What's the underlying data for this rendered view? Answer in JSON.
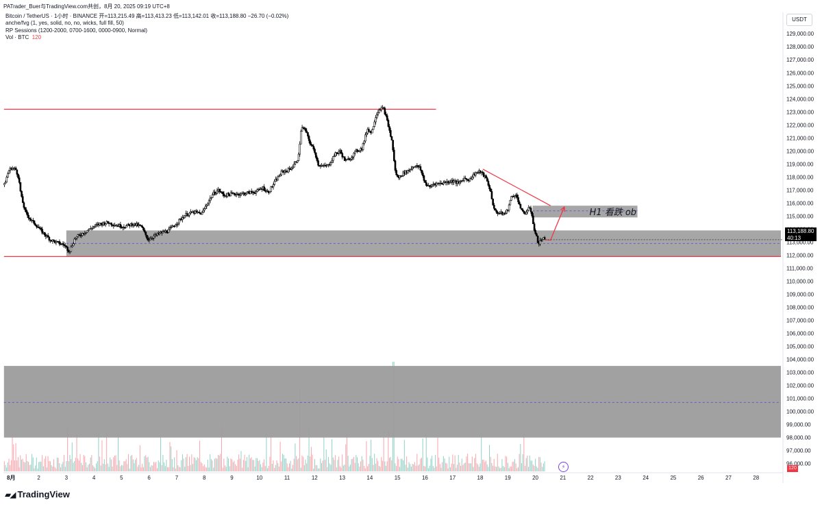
{
  "window_title": "PATrader_Buer与TradingView.com共创，8月 20, 2025 09:19 UTC+8",
  "legend": {
    "line1": "Bitcoin / TetherUS · 1小时 · BINANCE  开=113,215.49  高=113,413.23  低=113,142.01  收=113,188.80  −26.70 (−0.02%)",
    "line2": "anche/fvg (1, yes, solid, no, no, wicks, full fill, 50)",
    "line3": "RP Sessions (1200-2000, 0700-1600, 0000-0900, Normal)",
    "line4_label": "Vol · BTC",
    "line4_value": "120"
  },
  "currency_button": "USDT",
  "price_tag": {
    "price": "113,188.80",
    "countdown": "40:13"
  },
  "volume_tag": "120",
  "annotation_label": "H1 看跌 ob",
  "brand": "TradingView",
  "colors": {
    "up": "#089981",
    "down": "#f23645",
    "zone": "#9c9c9c",
    "accent": "#7b3fe4"
  },
  "chart_data": {
    "type": "candlestick",
    "ylim": [
      95300,
      129800
    ],
    "y_ticks": [
      96000,
      97000,
      98000,
      99000,
      100000,
      101000,
      102000,
      103000,
      104000,
      105000,
      106000,
      107000,
      108000,
      109000,
      110000,
      111000,
      112000,
      113000,
      114000,
      115000,
      116000,
      117000,
      118000,
      119000,
      120000,
      121000,
      122000,
      123000,
      124000,
      125000,
      126000,
      127000,
      128000,
      129000
    ],
    "x_range": [
      0.72,
      28.9
    ],
    "x_ticks": [
      {
        "x": 1,
        "label": "8月"
      },
      {
        "x": 2,
        "label": "2"
      },
      {
        "x": 3,
        "label": "3"
      },
      {
        "x": 4,
        "label": "4"
      },
      {
        "x": 5,
        "label": "5"
      },
      {
        "x": 6,
        "label": "6"
      },
      {
        "x": 7,
        "label": "7"
      },
      {
        "x": 8,
        "label": "8"
      },
      {
        "x": 9,
        "label": "9"
      },
      {
        "x": 10,
        "label": "10"
      },
      {
        "x": 11,
        "label": "11"
      },
      {
        "x": 12,
        "label": "12"
      },
      {
        "x": 13,
        "label": "13"
      },
      {
        "x": 14,
        "label": "14"
      },
      {
        "x": 15,
        "label": "15"
      },
      {
        "x": 16,
        "label": "16"
      },
      {
        "x": 17,
        "label": "17"
      },
      {
        "x": 18,
        "label": "18"
      },
      {
        "x": 19,
        "label": "19"
      },
      {
        "x": 20,
        "label": "20"
      },
      {
        "x": 21,
        "label": "21"
      },
      {
        "x": 22,
        "label": "22"
      },
      {
        "x": 23,
        "label": "23"
      },
      {
        "x": 24,
        "label": "24"
      },
      {
        "x": 25,
        "label": "25"
      },
      {
        "x": 26,
        "label": "26"
      },
      {
        "x": 27,
        "label": "27"
      },
      {
        "x": 28,
        "label": "28"
      }
    ],
    "price_path": [
      [
        0.74,
        117400
      ],
      [
        0.9,
        118500
      ],
      [
        1.0,
        118700
      ],
      [
        1.15,
        118600
      ],
      [
        1.25,
        118000
      ],
      [
        1.35,
        116500
      ],
      [
        1.5,
        115300
      ],
      [
        1.7,
        114700
      ],
      [
        1.9,
        114300
      ],
      [
        2.1,
        113800
      ],
      [
        2.4,
        113200
      ],
      [
        2.6,
        113000
      ],
      [
        2.9,
        112800
      ],
      [
        3.1,
        112300
      ],
      [
        3.3,
        113300
      ],
      [
        3.6,
        113700
      ],
      [
        3.9,
        114100
      ],
      [
        4.2,
        114400
      ],
      [
        4.5,
        114500
      ],
      [
        4.8,
        114300
      ],
      [
        5.1,
        114200
      ],
      [
        5.4,
        114400
      ],
      [
        5.7,
        114200
      ],
      [
        5.95,
        113200
      ],
      [
        6.1,
        113400
      ],
      [
        6.4,
        113700
      ],
      [
        6.7,
        113900
      ],
      [
        7.0,
        114500
      ],
      [
        7.3,
        115100
      ],
      [
        7.6,
        115300
      ],
      [
        7.9,
        115200
      ],
      [
        8.1,
        116000
      ],
      [
        8.3,
        116700
      ],
      [
        8.5,
        117000
      ],
      [
        8.7,
        116600
      ],
      [
        9.0,
        116700
      ],
      [
        9.3,
        116700
      ],
      [
        9.6,
        116800
      ],
      [
        9.9,
        116900
      ],
      [
        10.1,
        117200
      ],
      [
        10.3,
        116800
      ],
      [
        10.6,
        117800
      ],
      [
        10.8,
        118400
      ],
      [
        11.0,
        118500
      ],
      [
        11.2,
        118800
      ],
      [
        11.4,
        119500
      ],
      [
        11.5,
        121800
      ],
      [
        11.65,
        121600
      ],
      [
        11.8,
        120700
      ],
      [
        12.0,
        119900
      ],
      [
        12.1,
        119000
      ],
      [
        12.3,
        118800
      ],
      [
        12.5,
        118900
      ],
      [
        12.7,
        119700
      ],
      [
        12.9,
        120000
      ],
      [
        13.1,
        119200
      ],
      [
        13.3,
        119500
      ],
      [
        13.5,
        120000
      ],
      [
        13.7,
        120200
      ],
      [
        13.9,
        121700
      ],
      [
        14.05,
        121400
      ],
      [
        14.2,
        122700
      ],
      [
        14.35,
        123300
      ],
      [
        14.5,
        123200
      ],
      [
        14.65,
        122000
      ],
      [
        14.8,
        120600
      ],
      [
        14.9,
        118500
      ],
      [
        15.0,
        117900
      ],
      [
        15.2,
        118300
      ],
      [
        15.4,
        118500
      ],
      [
        15.6,
        118900
      ],
      [
        15.8,
        118700
      ],
      [
        16.0,
        117500
      ],
      [
        16.15,
        117200
      ],
      [
        16.3,
        117500
      ],
      [
        16.5,
        117500
      ],
      [
        16.7,
        117600
      ],
      [
        17.0,
        117700
      ],
      [
        17.2,
        117500
      ],
      [
        17.4,
        117900
      ],
      [
        17.6,
        117800
      ],
      [
        17.8,
        118300
      ],
      [
        18.0,
        118400
      ],
      [
        18.2,
        117900
      ],
      [
        18.35,
        117000
      ],
      [
        18.5,
        115400
      ],
      [
        18.7,
        115200
      ],
      [
        18.9,
        115200
      ],
      [
        19.0,
        115600
      ],
      [
        19.1,
        116400
      ],
      [
        19.25,
        116700
      ],
      [
        19.35,
        116300
      ],
      [
        19.5,
        115300
      ],
      [
        19.6,
        115200
      ],
      [
        19.75,
        115600
      ],
      [
        19.85,
        115300
      ],
      [
        19.95,
        113900
      ],
      [
        20.1,
        112900
      ],
      [
        20.25,
        113300
      ],
      [
        20.35,
        113190
      ]
    ],
    "volume_series": {
      "name": "Vol · BTC",
      "last": 120
    },
    "levels": [
      {
        "type": "horizontal_resistance",
        "price": 123200,
        "from": 0.74,
        "to": 16.4
      },
      {
        "type": "horizontal_support",
        "price": 111900,
        "from": 0.74,
        "to": 28.9
      }
    ],
    "zones": [
      {
        "price_top": 113900,
        "price_bottom": 111900,
        "from": 3.0,
        "to": 28.9,
        "midline": 112900
      },
      {
        "price_top": 115800,
        "price_bottom": 114900,
        "from": 19.9,
        "to": 23.7,
        "midline": 115400,
        "label": "H1 看跌 ob"
      },
      {
        "price_top": 103500,
        "price_bottom": 98000,
        "from": 0.74,
        "to": 28.9,
        "midline": 100700
      }
    ],
    "trendline": {
      "from": [
        18.1,
        118600
      ],
      "to": [
        20.55,
        115800
      ]
    },
    "projection": [
      [
        20.35,
        113190
      ],
      [
        20.55,
        113150
      ],
      [
        20.75,
        114200
      ],
      [
        21.05,
        115700
      ]
    ]
  }
}
